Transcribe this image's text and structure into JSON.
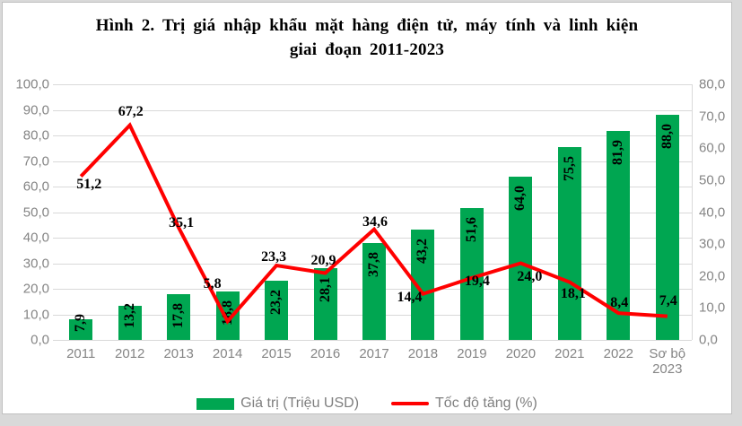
{
  "title": {
    "line1": "Hình 2. Trị giá nhập khẩu mặt hàng điện tử, máy tính và linh kiện",
    "line2": "giai đoạn 2011-2023"
  },
  "chart_data": {
    "type": "combo-bar-line",
    "categories": [
      "2011",
      "2012",
      "2013",
      "2014",
      "2015",
      "2016",
      "2017",
      "2018",
      "2019",
      "2020",
      "2021",
      "2022",
      "Sơ bộ 2023"
    ],
    "series": [
      {
        "name": "Giá trị (Triệu USD)",
        "type": "bar",
        "axis": "left",
        "color": "#00A651",
        "values": [
          7.9,
          13.2,
          17.8,
          18.8,
          23.2,
          28.1,
          37.8,
          43.2,
          51.6,
          64.0,
          75.5,
          81.9,
          88.0
        ],
        "labels": [
          "7,9",
          "13,2",
          "17,8",
          "18,8",
          "23,2",
          "28,1",
          "37,8",
          "43,2",
          "51,6",
          "64,0",
          "75,5",
          "81,9",
          "88,0"
        ]
      },
      {
        "name": "Tốc độ tăng (%)",
        "type": "line",
        "axis": "right",
        "color": "#FF0000",
        "values": [
          51.2,
          67.2,
          35.1,
          5.8,
          23.3,
          20.9,
          34.6,
          14.4,
          19.4,
          24.0,
          18.1,
          8.4,
          7.4
        ],
        "labels": [
          "51,2",
          "67,2",
          "35,1",
          "5,8",
          "23,3",
          "20,9",
          "34,6",
          "14,4",
          "19,4",
          "24,0",
          "18,1",
          "8,4",
          "7,4"
        ]
      }
    ],
    "left_axis": {
      "min": 0,
      "max": 100,
      "step": 10,
      "tick_labels": [
        "100,0",
        "90,0",
        "80,0",
        "70,0",
        "60,0",
        "50,0",
        "40,0",
        "30,0",
        "20,0",
        "10,0",
        "0,0"
      ]
    },
    "right_axis": {
      "min": 0,
      "max": 80,
      "step": 10,
      "tick_labels": [
        "80,0",
        "70,0",
        "60,0",
        "50,0",
        "40,0",
        "30,0",
        "20,0",
        "10,0",
        "0,0"
      ]
    },
    "grid": "horizontal",
    "legend_position": "bottom"
  },
  "colors": {
    "bar": "#00A651",
    "line": "#FF0000",
    "grid": "#D9D9D9",
    "axis_text": "#858585",
    "legend_text": "#7F7F7F",
    "frame_border": "#C0C0C0",
    "page_background": "#D9D9D9",
    "panel_background": "#FFFFFF"
  }
}
